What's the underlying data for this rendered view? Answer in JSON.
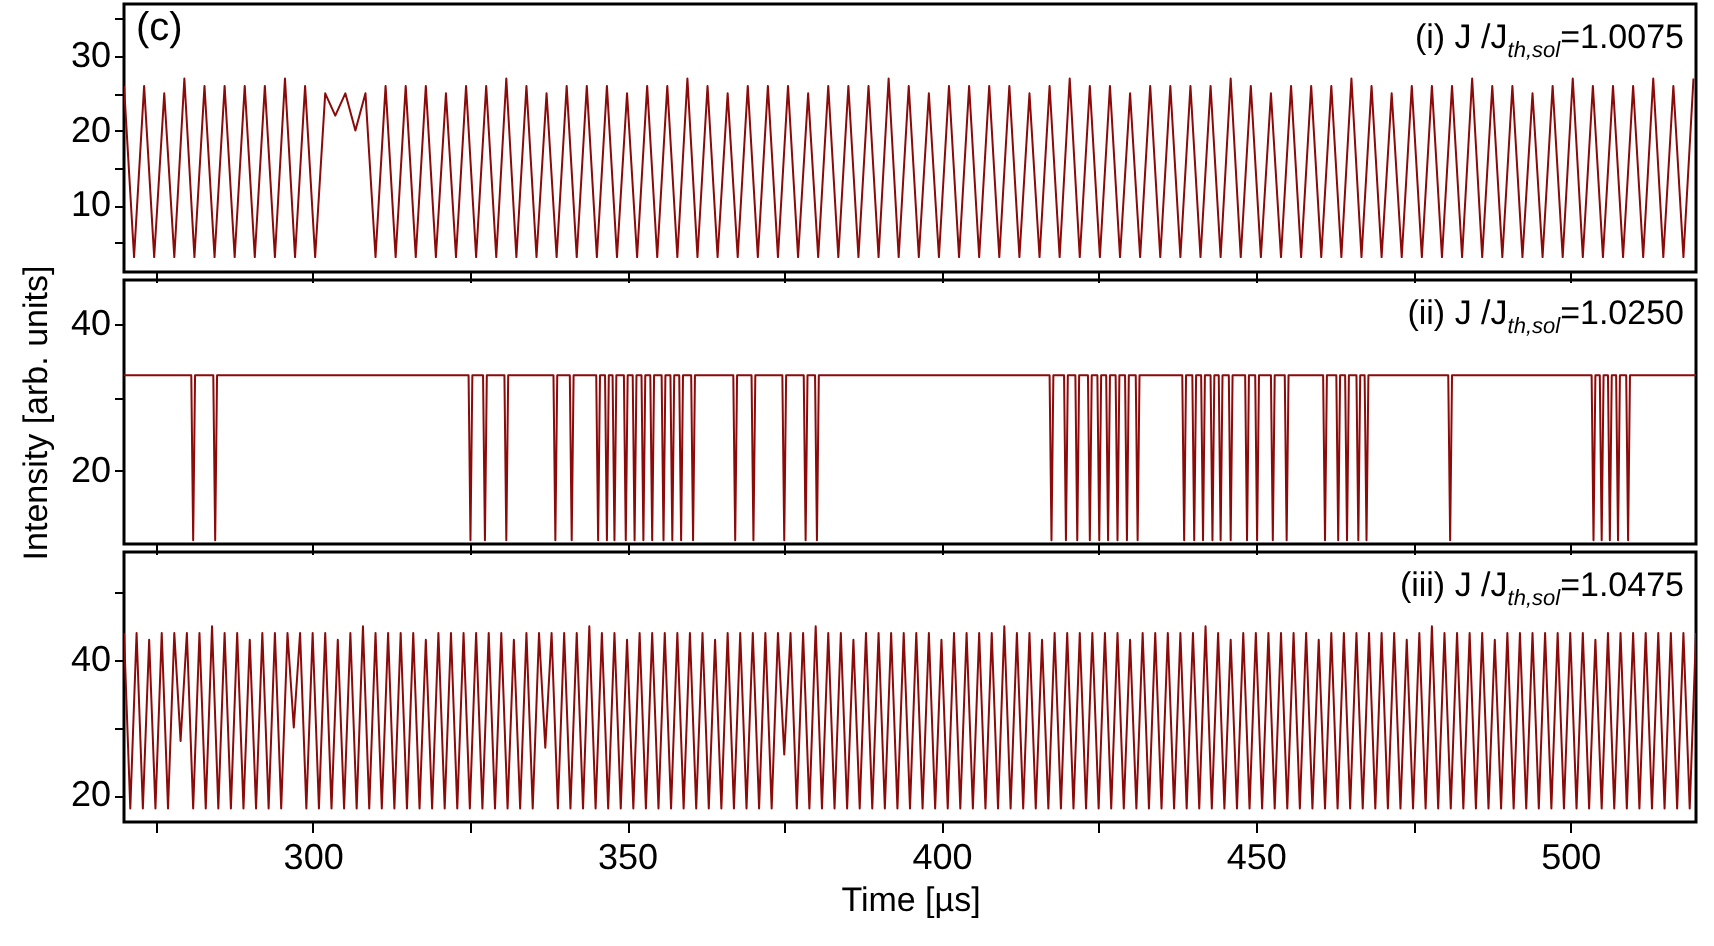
{
  "chart_data": [
    {
      "type": "line",
      "annotations": [
        "(c)",
        "(i) J /J$_{th,sol}$=1.0075"
      ],
      "tick_labels": "y",
      "xlim": [
        270,
        520
      ],
      "xticks": [
        {
          "value": 275,
          "label": null
        },
        300,
        {
          "value": 325,
          "label": null
        },
        350,
        {
          "value": 375,
          "label": null
        },
        400,
        {
          "value": 425,
          "label": null
        },
        450,
        {
          "value": 475,
          "label": null
        },
        500
      ],
      "ylim": [
        1,
        37
      ],
      "yticks": [
        {
          "value": 5,
          "label": null
        },
        10,
        {
          "value": 15,
          "label": null
        },
        20,
        {
          "value": 25,
          "label": null
        },
        30,
        {
          "value": 35,
          "label": null
        }
      ],
      "x": [
        270,
        271.6,
        273.2,
        274.8,
        276.4,
        278,
        279.6,
        281.2,
        282.8,
        284.4,
        286,
        287.6,
        289.2,
        290.8,
        292.4,
        294,
        295.6,
        297.2,
        298.8,
        300.4,
        302,
        303.6,
        305.2,
        306.8,
        308.4,
        310,
        311.6,
        313.2,
        314.8,
        316.4,
        318,
        319.6,
        321.2,
        322.8,
        324.4,
        326,
        327.6,
        329.2,
        330.8,
        332.4,
        334,
        335.6,
        337.2,
        338.8,
        340.4,
        342,
        343.6,
        345.2,
        346.8,
        348.4,
        350,
        351.6,
        353.2,
        354.8,
        356.4,
        358,
        359.6,
        361.2,
        362.8,
        364.4,
        366,
        367.6,
        369.2,
        370.8,
        372.4,
        374,
        375.6,
        377.2,
        378.8,
        380.4,
        382,
        383.6,
        385.2,
        386.8,
        388.4,
        390,
        391.6,
        393.2,
        394.8,
        396.4,
        398,
        399.6,
        401.2,
        402.8,
        404.4,
        406,
        407.6,
        409.2,
        410.8,
        412.4,
        414,
        415.6,
        417.2,
        418.8,
        420.4,
        422,
        423.6,
        425.2,
        426.8,
        428.4,
        430,
        431.6,
        433.2,
        434.8,
        436.4,
        438,
        439.6,
        441.2,
        442.8,
        444.4,
        446,
        447.6,
        449.2,
        450.8,
        452.4,
        454,
        455.6,
        457.2,
        458.8,
        460.4,
        462,
        463.6,
        465.2,
        466.8,
        468.4,
        470,
        471.6,
        473.2,
        474.8,
        476.4,
        478,
        479.6,
        481.2,
        482.8,
        484.4,
        486,
        487.6,
        489.2,
        490.8,
        492.4,
        494,
        495.6,
        497.2,
        498.8,
        500.4,
        502,
        503.6,
        505.2,
        506.8,
        508.4,
        510,
        511.6,
        513.2,
        514.8,
        516.4,
        518,
        519.6
      ],
      "series": [
        {
          "color": "#8b0a0a",
          "values": [
            26,
            3,
            26,
            3,
            25,
            3,
            27,
            3,
            26,
            3,
            26,
            3,
            26,
            3,
            26,
            3,
            27,
            3,
            26,
            3,
            25,
            22,
            25,
            20,
            25,
            3,
            26,
            3,
            26,
            3,
            26,
            3,
            25,
            3,
            26,
            3,
            26,
            3,
            27,
            3,
            26,
            3,
            25,
            3,
            26,
            3,
            26,
            3,
            26,
            3,
            25,
            3,
            26,
            3,
            26,
            3,
            27,
            3,
            26,
            3,
            25,
            3,
            26,
            3,
            26,
            3,
            26,
            3,
            25,
            3,
            26,
            3,
            26,
            3,
            26,
            3,
            27,
            3,
            26,
            3,
            25,
            3,
            26,
            3,
            26,
            3,
            26,
            3,
            26,
            3,
            25,
            3,
            26,
            3,
            27,
            3,
            26,
            3,
            26,
            3,
            25,
            3,
            26,
            3,
            26,
            3,
            26,
            3,
            26,
            3,
            27,
            3,
            26,
            3,
            25,
            3,
            26,
            3,
            26,
            3,
            26,
            3,
            27,
            3,
            26,
            3,
            25,
            3,
            26,
            3,
            26,
            3,
            26,
            3,
            27,
            3,
            26,
            3,
            26,
            3,
            25,
            3,
            26,
            3,
            27,
            3,
            26,
            3,
            26,
            3,
            26,
            3,
            27,
            3,
            26,
            3,
            27
          ]
        }
      ]
    },
    {
      "type": "line",
      "annotations": [
        "(ii) J /J$_{th,sol}$=1.0250"
      ],
      "ylabel": "Intensity [arb. units]",
      "tick_labels": "y",
      "xlim": [
        270,
        520
      ],
      "xticks": [
        {
          "value": 275,
          "label": null
        },
        300,
        {
          "value": 325,
          "label": null
        },
        350,
        {
          "value": 375,
          "label": null
        },
        400,
        {
          "value": 425,
          "label": null
        },
        450,
        {
          "value": 475,
          "label": null
        },
        500
      ],
      "ylim": [
        10,
        46
      ],
      "yticks": [
        20,
        {
          "value": 30,
          "label": null
        },
        40
      ],
      "x": [
        270,
        280.7,
        281,
        281.3,
        284.2,
        284.5,
        284.8,
        300,
        324.8,
        325.1,
        325.4,
        327.1,
        327.4,
        327.7,
        330.5,
        330.8,
        331.1,
        338.3,
        338.6,
        338.9,
        340.9,
        341.2,
        341.5,
        345.1,
        345.4,
        345.7,
        346.5,
        346.8,
        347.1,
        347.7,
        348,
        348.3,
        349.5,
        349.8,
        350.1,
        350.9,
        351.2,
        351.5,
        352.3,
        352.6,
        352.9,
        353.7,
        354,
        354.3,
        355.5,
        355.8,
        356.1,
        356.9,
        357.2,
        357.5,
        358.3,
        358.6,
        358.9,
        360.2,
        360.5,
        360.8,
        366.9,
        367.2,
        367.5,
        369.8,
        370.1,
        370.4,
        374.7,
        375,
        375.3,
        378.1,
        378.4,
        378.7,
        379.9,
        380.2,
        380.5,
        400,
        417.2,
        417.5,
        417.8,
        419.5,
        419.8,
        420.1,
        421.3,
        421.6,
        421.9,
        423.3,
        423.6,
        423.9,
        424.8,
        425.1,
        425.4,
        426.2,
        426.5,
        426.8,
        427.7,
        428,
        428.3,
        429.2,
        429.5,
        429.8,
        430.9,
        431.2,
        431.5,
        438.3,
        438.6,
        438.9,
        439.9,
        440.2,
        440.5,
        441.3,
        441.6,
        441.9,
        442.8,
        443.1,
        443.4,
        444.1,
        444.4,
        444.7,
        445.7,
        446,
        446.3,
        448.3,
        448.6,
        448.9,
        449.9,
        450.2,
        450.5,
        452.4,
        452.7,
        453,
        454.6,
        454.9,
        455.2,
        460.7,
        461,
        461.3,
        462.8,
        463.1,
        463.4,
        464.2,
        464.5,
        464.8,
        466,
        466.3,
        466.6,
        467.3,
        467.6,
        467.9,
        480.6,
        480.9,
        481.2,
        490,
        503.4,
        503.7,
        504,
        504.7,
        505,
        505.3,
        506,
        506.3,
        506.6,
        507.3,
        507.6,
        507.9,
        508.9,
        509.2,
        509.5,
        520
      ],
      "series": [
        {
          "color": "#8b0a0a",
          "values": [
            33,
            33,
            10.5,
            33,
            33,
            10.5,
            33,
            33,
            33,
            10.5,
            33,
            33,
            10.5,
            33,
            33,
            10.5,
            33,
            33,
            10.5,
            33,
            33,
            10.5,
            33,
            33,
            10.5,
            33,
            33,
            10.5,
            33,
            33,
            10.5,
            33,
            33,
            10.5,
            33,
            33,
            10.5,
            33,
            33,
            10.5,
            33,
            33,
            10.5,
            33,
            33,
            10.5,
            33,
            33,
            10.5,
            33,
            33,
            10.5,
            33,
            33,
            10.5,
            33,
            33,
            10.5,
            33,
            33,
            10.5,
            33,
            33,
            10.5,
            33,
            33,
            10.5,
            33,
            33,
            10.5,
            33,
            33,
            33,
            10.5,
            33,
            33,
            10.5,
            33,
            33,
            10.5,
            33,
            33,
            10.5,
            33,
            33,
            10.5,
            33,
            33,
            10.5,
            33,
            33,
            10.5,
            33,
            33,
            10.5,
            33,
            33,
            10.5,
            33,
            33,
            10.5,
            33,
            33,
            10.5,
            33,
            33,
            10.5,
            33,
            33,
            10.5,
            33,
            33,
            10.5,
            33,
            33,
            10.5,
            33,
            33,
            10.5,
            33,
            33,
            10.5,
            33,
            33,
            10.5,
            33,
            33,
            10.5,
            33,
            33,
            10.5,
            33,
            33,
            10.5,
            33,
            33,
            10.5,
            33,
            33,
            10.5,
            33,
            33,
            10.5,
            33,
            33,
            10.5,
            33,
            33,
            33,
            10.5,
            33,
            33,
            10.5,
            33,
            33,
            10.5,
            33,
            33,
            10.5,
            33,
            33,
            10.5,
            33,
            33
          ]
        }
      ]
    },
    {
      "type": "line",
      "annotations": [
        "(iii) J /J$_{th,sol}$=1.0475"
      ],
      "xlabel": "Time [µs]",
      "xlim": [
        270,
        520
      ],
      "xticks": [
        {
          "value": 275,
          "label": null
        },
        300,
        {
          "value": 325,
          "label": null
        },
        350,
        {
          "value": 375,
          "label": null
        },
        400,
        {
          "value": 425,
          "label": null
        },
        450,
        {
          "value": 475,
          "label": null
        },
        500
      ],
      "ylim": [
        16,
        56
      ],
      "yticks": [
        20,
        {
          "value": 30,
          "label": null
        },
        40,
        {
          "value": 50,
          "label": null
        }
      ],
      "x": [
        270,
        271,
        272,
        273,
        274,
        275,
        276,
        277,
        278,
        279,
        280,
        281,
        282,
        283,
        284,
        285,
        286,
        287,
        288,
        289,
        290,
        291,
        292,
        293,
        294,
        295,
        296,
        297,
        298,
        299,
        300,
        301,
        302,
        303,
        304,
        305,
        306,
        307,
        308,
        309,
        310,
        311,
        312,
        313,
        314,
        315,
        316,
        317,
        318,
        319,
        320,
        321,
        322,
        323,
        324,
        325,
        326,
        327,
        328,
        329,
        330,
        331,
        332,
        333,
        334,
        335,
        336,
        337,
        338,
        339,
        340,
        341,
        342,
        343,
        344,
        345,
        346,
        347,
        348,
        349,
        350,
        351,
        352,
        353,
        354,
        355,
        356,
        357,
        358,
        359,
        360,
        361,
        362,
        363,
        364,
        365,
        366,
        367,
        368,
        369,
        370,
        371,
        372,
        373,
        374,
        375,
        376,
        377,
        378,
        379,
        380,
        381,
        382,
        383,
        384,
        385,
        386,
        387,
        388,
        389,
        390,
        391,
        392,
        393,
        394,
        395,
        396,
        397,
        398,
        399,
        400,
        401,
        402,
        403,
        404,
        405,
        406,
        407,
        408,
        409,
        410,
        411,
        412,
        413,
        414,
        415,
        416,
        417,
        418,
        419,
        420,
        421,
        422,
        423,
        424,
        425,
        426,
        427,
        428,
        429,
        430,
        431,
        432,
        433,
        434,
        435,
        436,
        437,
        438,
        439,
        440,
        441,
        442,
        443,
        444,
        445,
        446,
        447,
        448,
        449,
        450,
        451,
        452,
        453,
        454,
        455,
        456,
        457,
        458,
        459,
        460,
        461,
        462,
        463,
        464,
        465,
        466,
        467,
        468,
        469,
        470,
        471,
        472,
        473,
        474,
        475,
        476,
        477,
        478,
        479,
        480,
        481,
        482,
        483,
        484,
        485,
        486,
        487,
        488,
        489,
        490,
        491,
        492,
        493,
        494,
        495,
        496,
        497,
        498,
        499,
        500,
        501,
        502,
        503,
        504,
        505,
        506,
        507,
        508,
        509,
        510,
        511,
        512,
        513,
        514,
        515,
        516,
        517,
        518,
        519,
        520
      ],
      "series": [
        {
          "color": "#8b0a0a",
          "values": [
            44,
            18,
            44,
            18,
            43,
            18,
            44,
            18,
            44,
            28,
            44,
            18,
            44,
            18,
            45,
            18,
            44,
            18,
            44,
            18,
            43,
            18,
            44,
            18,
            44,
            18,
            44,
            30,
            44,
            18,
            44,
            18,
            44,
            18,
            43,
            18,
            44,
            18,
            45,
            18,
            44,
            18,
            44,
            18,
            44,
            18,
            44,
            18,
            43,
            18,
            44,
            18,
            44,
            18,
            44,
            18,
            44,
            18,
            44,
            18,
            44,
            18,
            43,
            18,
            44,
            18,
            44,
            27,
            44,
            18,
            44,
            18,
            44,
            18,
            45,
            18,
            44,
            18,
            44,
            18,
            43,
            18,
            44,
            18,
            44,
            18,
            44,
            18,
            44,
            18,
            44,
            18,
            44,
            18,
            43,
            18,
            44,
            18,
            44,
            18,
            44,
            18,
            44,
            18,
            44,
            26,
            44,
            18,
            44,
            18,
            45,
            18,
            44,
            18,
            44,
            18,
            43,
            18,
            44,
            18,
            44,
            18,
            44,
            18,
            44,
            18,
            44,
            18,
            44,
            18,
            43,
            18,
            44,
            18,
            44,
            18,
            44,
            18,
            44,
            18,
            45,
            18,
            44,
            18,
            44,
            18,
            43,
            18,
            44,
            18,
            44,
            18,
            44,
            18,
            44,
            18,
            44,
            18,
            44,
            18,
            43,
            18,
            44,
            18,
            44,
            18,
            44,
            18,
            44,
            18,
            44,
            18,
            45,
            18,
            44,
            18,
            43,
            18,
            44,
            18,
            44,
            18,
            44,
            18,
            44,
            18,
            44,
            18,
            44,
            18,
            43,
            18,
            44,
            18,
            44,
            18,
            44,
            18,
            44,
            18,
            44,
            18,
            44,
            18,
            43,
            18,
            44,
            18,
            45,
            18,
            44,
            18,
            44,
            18,
            44,
            18,
            44,
            18,
            43,
            18,
            44,
            18,
            44,
            18,
            44,
            18,
            44,
            18,
            44,
            18,
            44,
            18,
            44,
            18,
            43,
            18,
            44,
            18,
            44,
            18,
            44,
            18,
            44,
            18,
            44,
            18,
            44,
            18,
            44,
            18,
            44
          ]
        }
      ]
    }
  ]
}
